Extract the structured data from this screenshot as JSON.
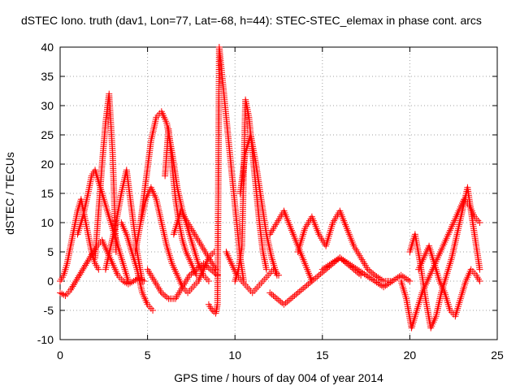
{
  "chart_data": {
    "type": "scatter",
    "title": "dSTEC Iono. truth (dav1, Lon=77, Lat=-68, h=44): STEC-STEC_elemax in phase cont. arcs",
    "xlabel": "GPS time / hours of day 004 of year 2014",
    "ylabel": "dSTEC  / TECUs",
    "xlim": [
      0,
      25
    ],
    "ylim": [
      -10,
      40
    ],
    "xticks": [
      0,
      5,
      10,
      15,
      20,
      25
    ],
    "yticks": [
      -10,
      -5,
      0,
      5,
      10,
      15,
      20,
      25,
      30,
      35,
      40
    ],
    "grid": true,
    "marker": "+",
    "color": "#ff0000",
    "series": [
      {
        "x": [
          0.0,
          0.2,
          0.4,
          0.6,
          0.8,
          1.0,
          1.2,
          1.4,
          1.6,
          1.8,
          2.0,
          2.2
        ],
        "values": [
          0,
          1,
          3,
          6,
          9,
          12,
          14,
          11,
          8,
          5,
          3,
          2
        ]
      },
      {
        "x": [
          0.0,
          0.3,
          0.6,
          0.9,
          1.2,
          1.5,
          1.8,
          2.1,
          2.4,
          2.7,
          3.0,
          3.3,
          3.6,
          3.9,
          4.2,
          4.5,
          4.8
        ],
        "values": [
          -2,
          -2.5,
          -1.5,
          0,
          1.5,
          3,
          4.5,
          6,
          7,
          5,
          3,
          1,
          0,
          -0.5,
          0,
          0.5,
          0
        ]
      },
      {
        "x": [
          1.0,
          1.3,
          1.6,
          1.8,
          2.0,
          2.2,
          2.4,
          2.6,
          2.8,
          3.0,
          3.3,
          3.6,
          3.9
        ],
        "values": [
          8,
          11,
          15,
          18,
          19,
          17,
          15,
          13,
          11,
          9,
          6,
          3,
          0
        ]
      },
      {
        "x": [
          2.0,
          2.2,
          2.4,
          2.6,
          2.8,
          3.0,
          3.2
        ],
        "values": [
          4,
          12,
          20,
          27,
          32,
          22,
          5
        ]
      },
      {
        "x": [
          2.6,
          2.9,
          3.2,
          3.5,
          3.8,
          4.1,
          4.4,
          4.7
        ],
        "values": [
          2,
          6,
          10,
          15,
          19,
          12,
          5,
          0
        ]
      },
      {
        "x": [
          3.5,
          3.8,
          4.1,
          4.4,
          4.7,
          5.0,
          5.3
        ],
        "values": [
          10,
          8,
          5,
          2,
          -2,
          -4,
          -5
        ]
      },
      {
        "x": [
          4.3,
          4.6,
          4.9,
          5.2,
          5.5,
          5.8,
          6.1,
          6.4,
          6.7,
          7.0,
          7.3,
          7.6,
          7.9,
          8.2,
          8.5
        ],
        "values": [
          5,
          10,
          17,
          24,
          28,
          29,
          27,
          22,
          16,
          12,
          9,
          6,
          3,
          1,
          0
        ]
      },
      {
        "x": [
          4.6,
          4.9,
          5.2,
          5.5,
          5.8,
          6.1,
          6.4,
          6.7,
          7.0,
          7.3,
          7.6,
          7.9,
          8.2,
          8.5,
          8.8
        ],
        "values": [
          10,
          14,
          16,
          14,
          10,
          6,
          3,
          1,
          -1,
          -2,
          -1,
          0,
          2,
          4,
          5
        ]
      },
      {
        "x": [
          5.0,
          5.4,
          5.8,
          6.2,
          6.6,
          7.0,
          7.4,
          7.8,
          8.2,
          8.6,
          9.0
        ],
        "values": [
          2,
          0,
          -2,
          -3,
          -3,
          -1,
          1,
          2,
          3,
          2,
          1
        ]
      },
      {
        "x": [
          6.0,
          6.2,
          6.4,
          6.6,
          6.8,
          7.0,
          7.2,
          7.5,
          7.8
        ],
        "values": [
          18,
          26,
          20,
          14,
          10,
          7,
          5,
          3,
          1
        ]
      },
      {
        "x": [
          6.5,
          6.9,
          7.3,
          7.7,
          8.1,
          8.5,
          8.9
        ],
        "values": [
          8,
          12,
          10,
          8,
          6,
          4,
          2
        ]
      },
      {
        "x": [
          8.5,
          8.7,
          8.9,
          9.0,
          9.1,
          9.3,
          9.5,
          9.7,
          9.9,
          10.1,
          10.3,
          10.5
        ],
        "values": [
          -4,
          -5,
          -5.5,
          -4,
          40,
          34,
          28,
          22,
          16,
          10,
          4,
          0
        ]
      },
      {
        "x": [
          9.5,
          9.8,
          10.1,
          10.4,
          10.7,
          11.0,
          11.3,
          11.6,
          11.9,
          12.2,
          12.5
        ],
        "values": [
          5,
          3,
          1,
          0,
          -1,
          -2,
          -1,
          0,
          1,
          2,
          1
        ]
      },
      {
        "x": [
          10.0,
          10.2,
          10.4,
          10.6,
          10.8,
          11.0,
          11.2,
          11.4,
          11.6,
          11.8
        ],
        "values": [
          0,
          2,
          6,
          31,
          28,
          22,
          16,
          10,
          5,
          2
        ]
      },
      {
        "x": [
          10.3,
          10.6,
          10.9,
          11.2,
          11.5,
          11.8,
          12.1,
          12.4
        ],
        "values": [
          15,
          22,
          25,
          20,
          14,
          8,
          4,
          1
        ]
      },
      {
        "x": [
          12.0,
          12.4,
          12.8,
          13.2,
          13.6,
          14.0,
          14.4,
          14.8,
          15.2,
          15.6,
          16.0,
          16.4,
          16.8,
          17.2
        ],
        "values": [
          -2,
          -3,
          -4,
          -3,
          -2,
          -1,
          0,
          1,
          2,
          3,
          4,
          3,
          2,
          1
        ]
      },
      {
        "x": [
          12.0,
          12.4,
          12.8,
          13.2,
          13.6,
          14.0,
          14.4
        ],
        "values": [
          8,
          10,
          12,
          9,
          6,
          3,
          0
        ]
      },
      {
        "x": [
          13.6,
          14.0,
          14.4,
          14.8,
          15.2,
          15.6,
          16.0,
          16.4,
          16.8,
          17.2,
          17.6,
          18.0,
          18.5,
          19.0
        ],
        "values": [
          5,
          9,
          11,
          8,
          6,
          10,
          12,
          9,
          6,
          4,
          2,
          1,
          0,
          0
        ]
      },
      {
        "x": [
          15.0,
          15.5,
          16.0,
          16.5,
          17.0,
          17.5,
          18.0,
          18.5,
          19.0,
          19.5,
          20.0
        ],
        "values": [
          2,
          3,
          4,
          3,
          2,
          1,
          0,
          -1,
          0,
          1,
          0
        ]
      },
      {
        "x": [
          19.5,
          19.8,
          20.1,
          20.4,
          20.7,
          21.0,
          21.3,
          21.6,
          21.9,
          22.2,
          22.5,
          22.8,
          23.1,
          23.4,
          23.7,
          24.0
        ],
        "values": [
          0,
          -3,
          -8,
          -5,
          -2,
          0,
          2,
          4,
          6,
          8,
          10,
          12,
          14,
          13,
          11,
          10
        ]
      },
      {
        "x": [
          20.0,
          20.3,
          20.6,
          20.9,
          21.2,
          21.5,
          21.8,
          22.1,
          22.4,
          22.7,
          23.0,
          23.3,
          23.6,
          24.0
        ],
        "values": [
          5,
          8,
          3,
          -3,
          -8,
          -6,
          -2,
          1,
          4,
          8,
          12,
          16,
          10,
          2
        ]
      },
      {
        "x": [
          20.5,
          20.8,
          21.1,
          21.4,
          21.7,
          22.0,
          22.3,
          22.6,
          22.9,
          23.2,
          23.5,
          23.8,
          24.0
        ],
        "values": [
          2,
          4,
          6,
          3,
          0,
          -2,
          -5,
          -6,
          -3,
          0,
          2,
          1,
          0
        ]
      }
    ]
  }
}
